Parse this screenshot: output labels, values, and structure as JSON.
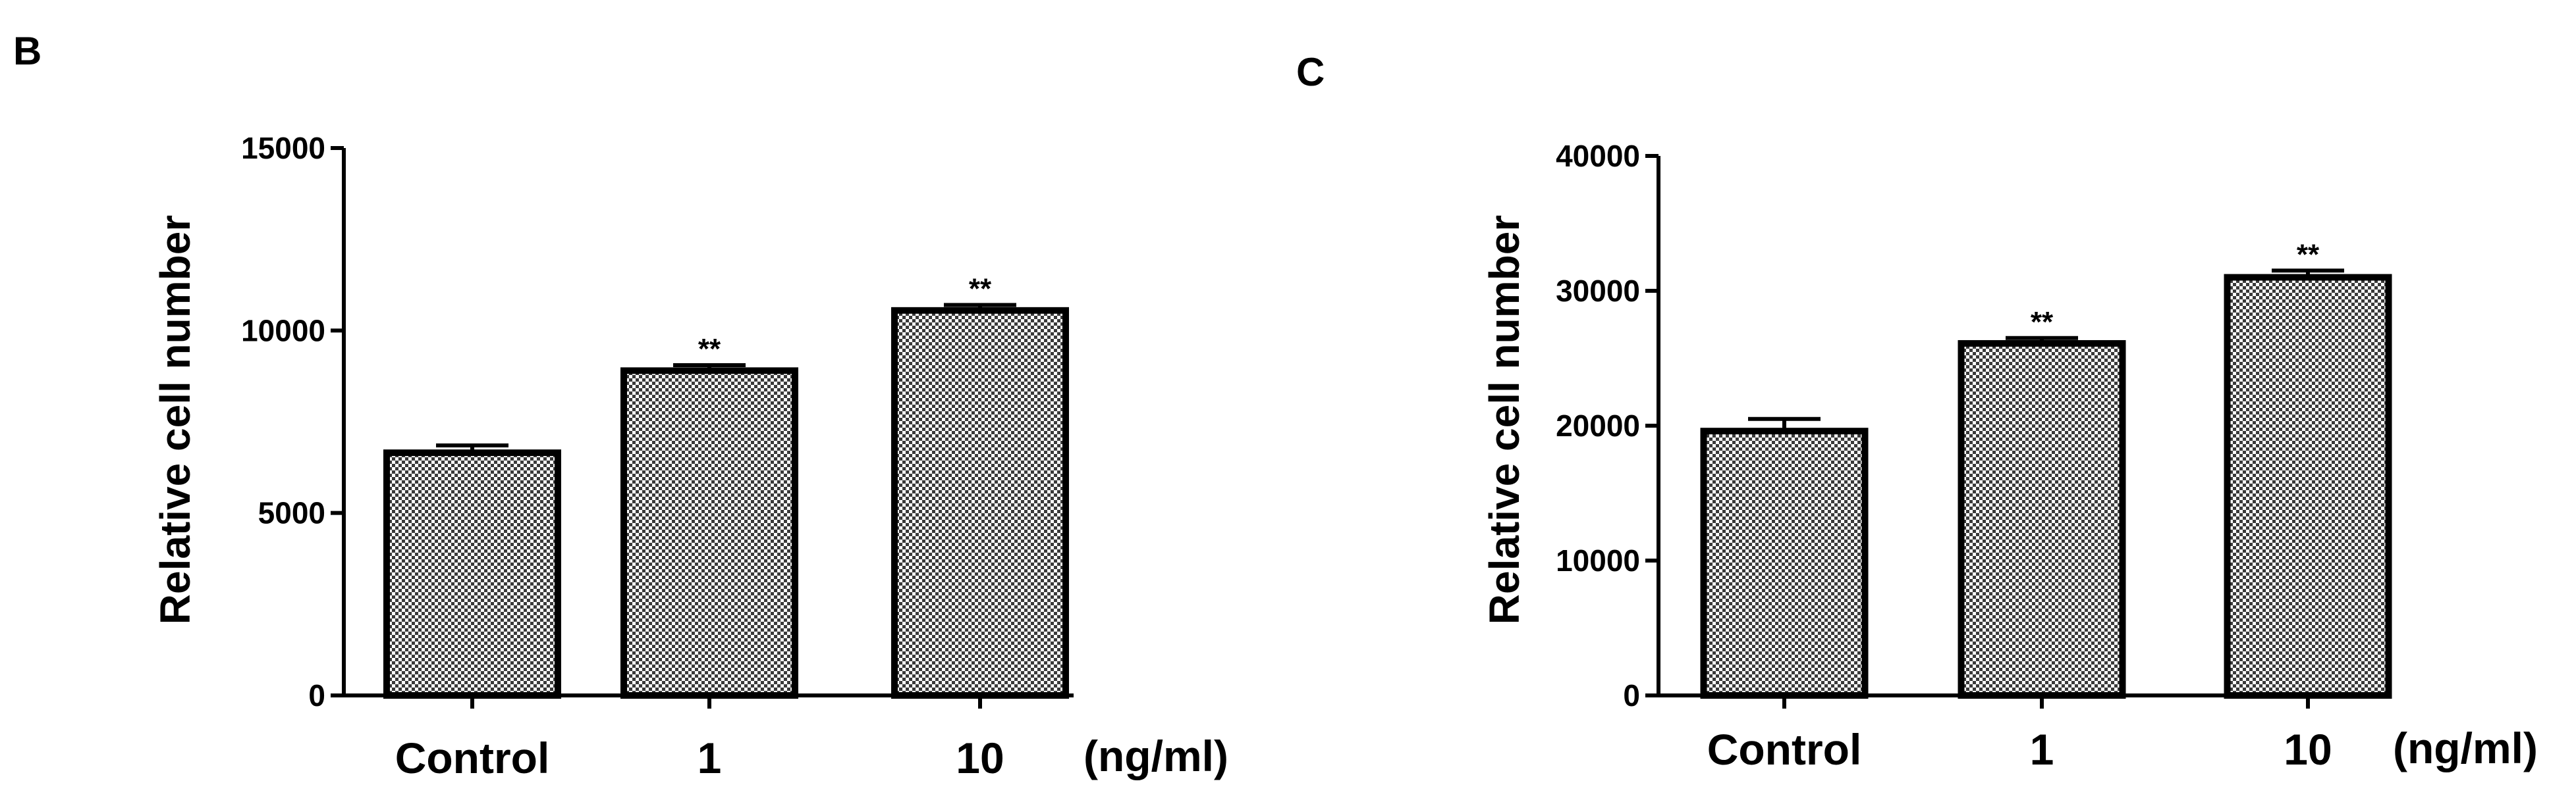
{
  "chart_data": [
    {
      "type": "bar",
      "panel": "B",
      "ylabel": "Relative cell number",
      "xunit": "(ng/ml)",
      "categories": [
        "Control",
        "1",
        "10"
      ],
      "values": [
        6650,
        8900,
        10550
      ],
      "errors": [
        200,
        150,
        150
      ],
      "significance": [
        "",
        "**",
        "**"
      ],
      "ylim": [
        0,
        15000
      ],
      "yticks": [
        0,
        5000,
        10000,
        15000
      ],
      "ytick_labels": [
        "0",
        "5000",
        "10000",
        "15000"
      ],
      "grid": false
    },
    {
      "type": "bar",
      "panel": "C",
      "ylabel": "Relative cell number",
      "xunit": "(ng/ml)",
      "categories": [
        "Control",
        "1",
        "10"
      ],
      "values": [
        19600,
        26100,
        31000
      ],
      "errors": [
        900,
        400,
        500
      ],
      "significance": [
        "",
        "**",
        "**"
      ],
      "ylim": [
        0,
        40000
      ],
      "yticks": [
        0,
        10000,
        20000,
        30000,
        40000
      ],
      "ytick_labels": [
        "0",
        "10000",
        "20000",
        "30000",
        "40000"
      ],
      "grid": false
    }
  ]
}
